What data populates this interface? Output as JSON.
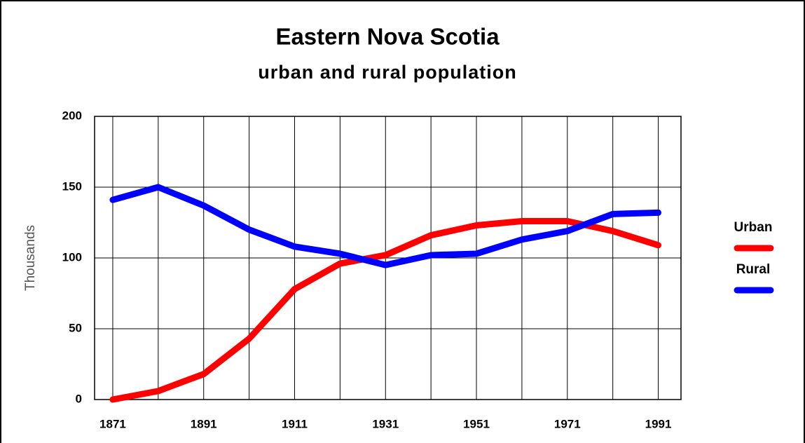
{
  "chart_data": {
    "type": "line",
    "title": "Eastern Nova Scotia",
    "subtitle": "urban and rural population",
    "y_label": "Thousands",
    "x": [
      1871,
      1881,
      1891,
      1901,
      1911,
      1921,
      1931,
      1941,
      1951,
      1961,
      1971,
      1981,
      1991
    ],
    "series": [
      {
        "name": "Urban",
        "color": "#ff0000",
        "values": [
          0,
          6,
          18,
          43,
          78,
          96,
          102,
          116,
          123,
          126,
          126,
          119,
          109
        ]
      },
      {
        "name": "Rural",
        "color": "#0000ff",
        "values": [
          141,
          150,
          137,
          120,
          108,
          103,
          95,
          102,
          103,
          113,
          119,
          131,
          132
        ]
      }
    ],
    "xlim": [
      1867,
      1996
    ],
    "xticks": [
      1871,
      1891,
      1911,
      1931,
      1951,
      1971,
      1991
    ],
    "xminor": [
      1881,
      1901,
      1921,
      1941,
      1961,
      1981
    ],
    "ylim": [
      0,
      200
    ],
    "yticks": [
      0,
      50,
      100,
      150,
      200
    ],
    "grid": true,
    "legend": "right"
  }
}
